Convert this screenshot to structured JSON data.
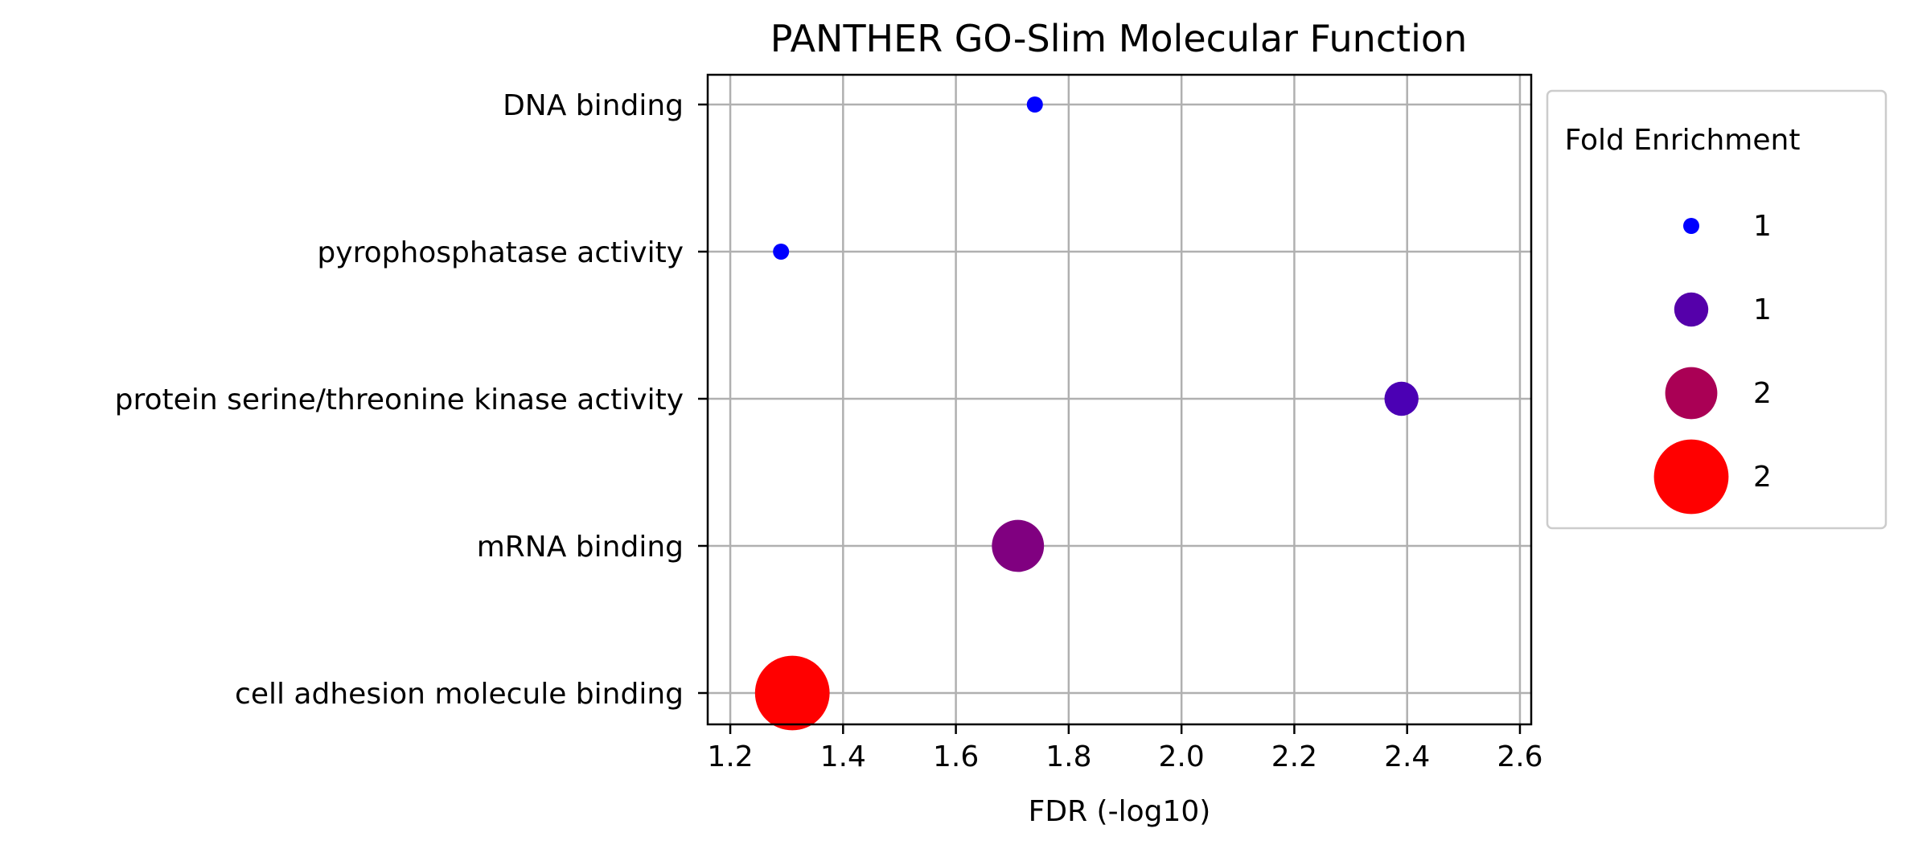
{
  "chart_data": {
    "type": "scatter",
    "title": "PANTHER GO-Slim Molecular Function",
    "xlabel": "FDR (-log10)",
    "ylabel": "",
    "xlim": [
      1.16,
      2.62
    ],
    "xticks": [
      1.2,
      1.4,
      1.6,
      1.8,
      2.0,
      2.2,
      2.4,
      2.6
    ],
    "xtick_labels": [
      "1.2",
      "1.4",
      "1.6",
      "1.8",
      "2.0",
      "2.2",
      "2.4",
      "2.6"
    ],
    "grid": true,
    "categories": [
      "DNA binding",
      "pyrophosphatase activity",
      "protein serine/threonine kinase activity",
      "mRNA binding",
      "cell adhesion molecule binding"
    ],
    "points": [
      {
        "category": "DNA binding",
        "fdr": 1.74,
        "fold_enrichment": 1.0,
        "color": "#0000ff"
      },
      {
        "category": "pyrophosphatase activity",
        "fdr": 1.29,
        "fold_enrichment": 1.0,
        "color": "#0000ff"
      },
      {
        "category": "protein serine/threonine kinase activity",
        "fdr": 2.39,
        "fold_enrichment": 1.4,
        "color": "#4b00b4"
      },
      {
        "category": "mRNA binding",
        "fdr": 1.71,
        "fold_enrichment": 1.8,
        "color": "#800080"
      },
      {
        "category": "cell adhesion molecule binding",
        "fdr": 1.31,
        "fold_enrichment": 2.3,
        "color": "#ff0000"
      }
    ],
    "legend": {
      "title": "Fold Enrichment",
      "placement": "outside-right",
      "entries": [
        {
          "label": "1",
          "fold_enrichment": 1.0,
          "color": "#0000ff"
        },
        {
          "label": "1",
          "fold_enrichment": 1.4,
          "color": "#5500aa"
        },
        {
          "label": "2",
          "fold_enrichment": 1.8,
          "color": "#aa0055"
        },
        {
          "label": "2",
          "fold_enrichment": 2.3,
          "color": "#ff0000"
        }
      ]
    }
  }
}
